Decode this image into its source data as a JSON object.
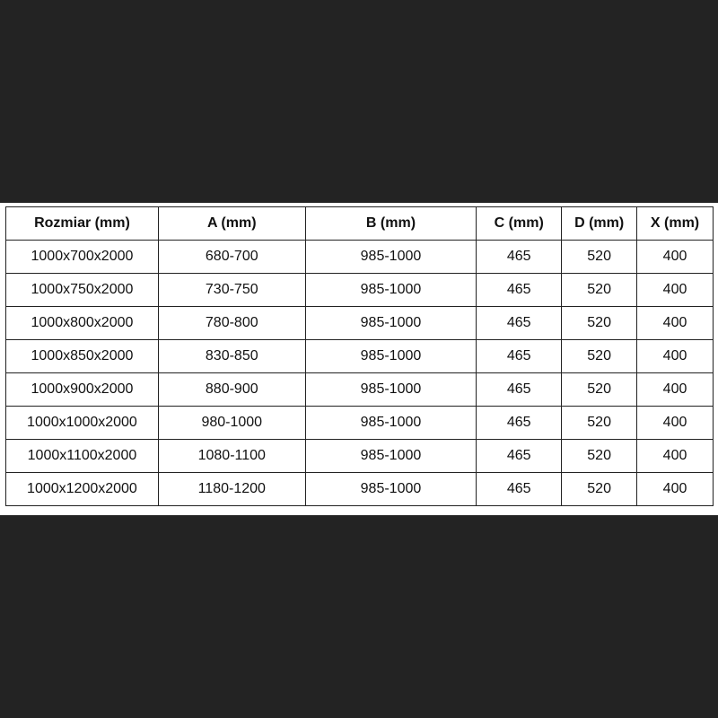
{
  "table": {
    "headers": [
      "Rozmiar (mm)",
      "A (mm)",
      "B (mm)",
      "C (mm)",
      "D (mm)",
      "X (mm)"
    ],
    "rows": [
      [
        "1000x700x2000",
        "680-700",
        "985-1000",
        "465",
        "520",
        "400"
      ],
      [
        "1000x750x2000",
        "730-750",
        "985-1000",
        "465",
        "520",
        "400"
      ],
      [
        "1000x800x2000",
        "780-800",
        "985-1000",
        "465",
        "520",
        "400"
      ],
      [
        "1000x850x2000",
        "830-850",
        "985-1000",
        "465",
        "520",
        "400"
      ],
      [
        "1000x900x2000",
        "880-900",
        "985-1000",
        "465",
        "520",
        "400"
      ],
      [
        "1000x1000x2000",
        "980-1000",
        "985-1000",
        "465",
        "520",
        "400"
      ],
      [
        "1000x1100x2000",
        "1080-1100",
        "985-1000",
        "465",
        "520",
        "400"
      ],
      [
        "1000x1200x2000",
        "1180-1200",
        "985-1000",
        "465",
        "520",
        "400"
      ]
    ]
  }
}
